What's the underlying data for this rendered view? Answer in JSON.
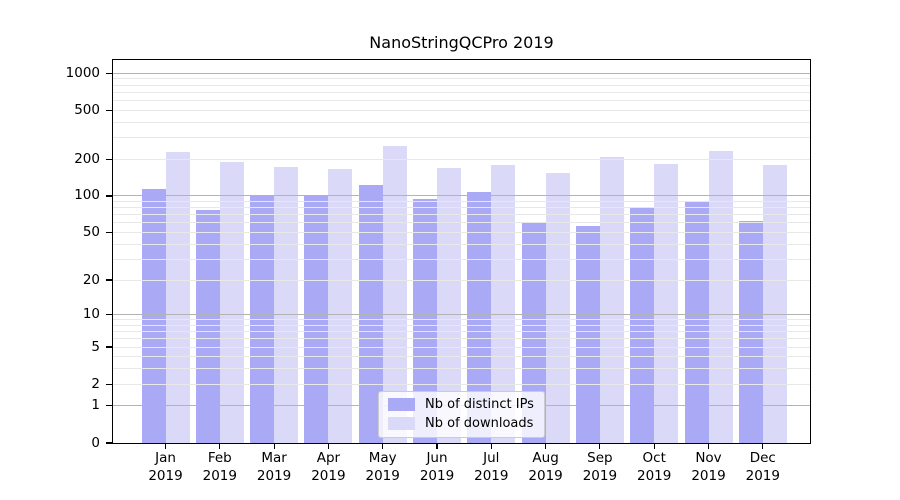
{
  "chart_data": {
    "type": "bar",
    "title": "NanoStringQCPro 2019",
    "categories": [
      {
        "month": "Jan",
        "year": "2019"
      },
      {
        "month": "Feb",
        "year": "2019"
      },
      {
        "month": "Mar",
        "year": "2019"
      },
      {
        "month": "Apr",
        "year": "2019"
      },
      {
        "month": "May",
        "year": "2019"
      },
      {
        "month": "Jun",
        "year": "2019"
      },
      {
        "month": "Jul",
        "year": "2019"
      },
      {
        "month": "Aug",
        "year": "2019"
      },
      {
        "month": "Sep",
        "year": "2019"
      },
      {
        "month": "Oct",
        "year": "2019"
      },
      {
        "month": "Nov",
        "year": "2019"
      },
      {
        "month": "Dec",
        "year": "2019"
      }
    ],
    "series": [
      {
        "name": "Nb of distinct IPs",
        "color": "#a9a9f6",
        "values": [
          115,
          76,
          101,
          101,
          122,
          94,
          107,
          60,
          57,
          79,
          91,
          62
        ]
      },
      {
        "name": "Nb of downloads",
        "color": "#dadaf8",
        "values": [
          230,
          188,
          174,
          167,
          256,
          169,
          180,
          153,
          208,
          182,
          232,
          178
        ]
      }
    ],
    "yscale": "log1p",
    "ylim": [
      0,
      1280
    ],
    "yticks": [
      0,
      1,
      2,
      5,
      10,
      20,
      50,
      100,
      200,
      500,
      1000
    ],
    "grid": {
      "enabled": true,
      "major_color": "#b3b3b3",
      "minor_color": "#e8e8e8"
    },
    "legend_position": "lower center",
    "colors": {
      "background": "#ffffff",
      "spine": "#000000",
      "text": "#000000"
    }
  }
}
